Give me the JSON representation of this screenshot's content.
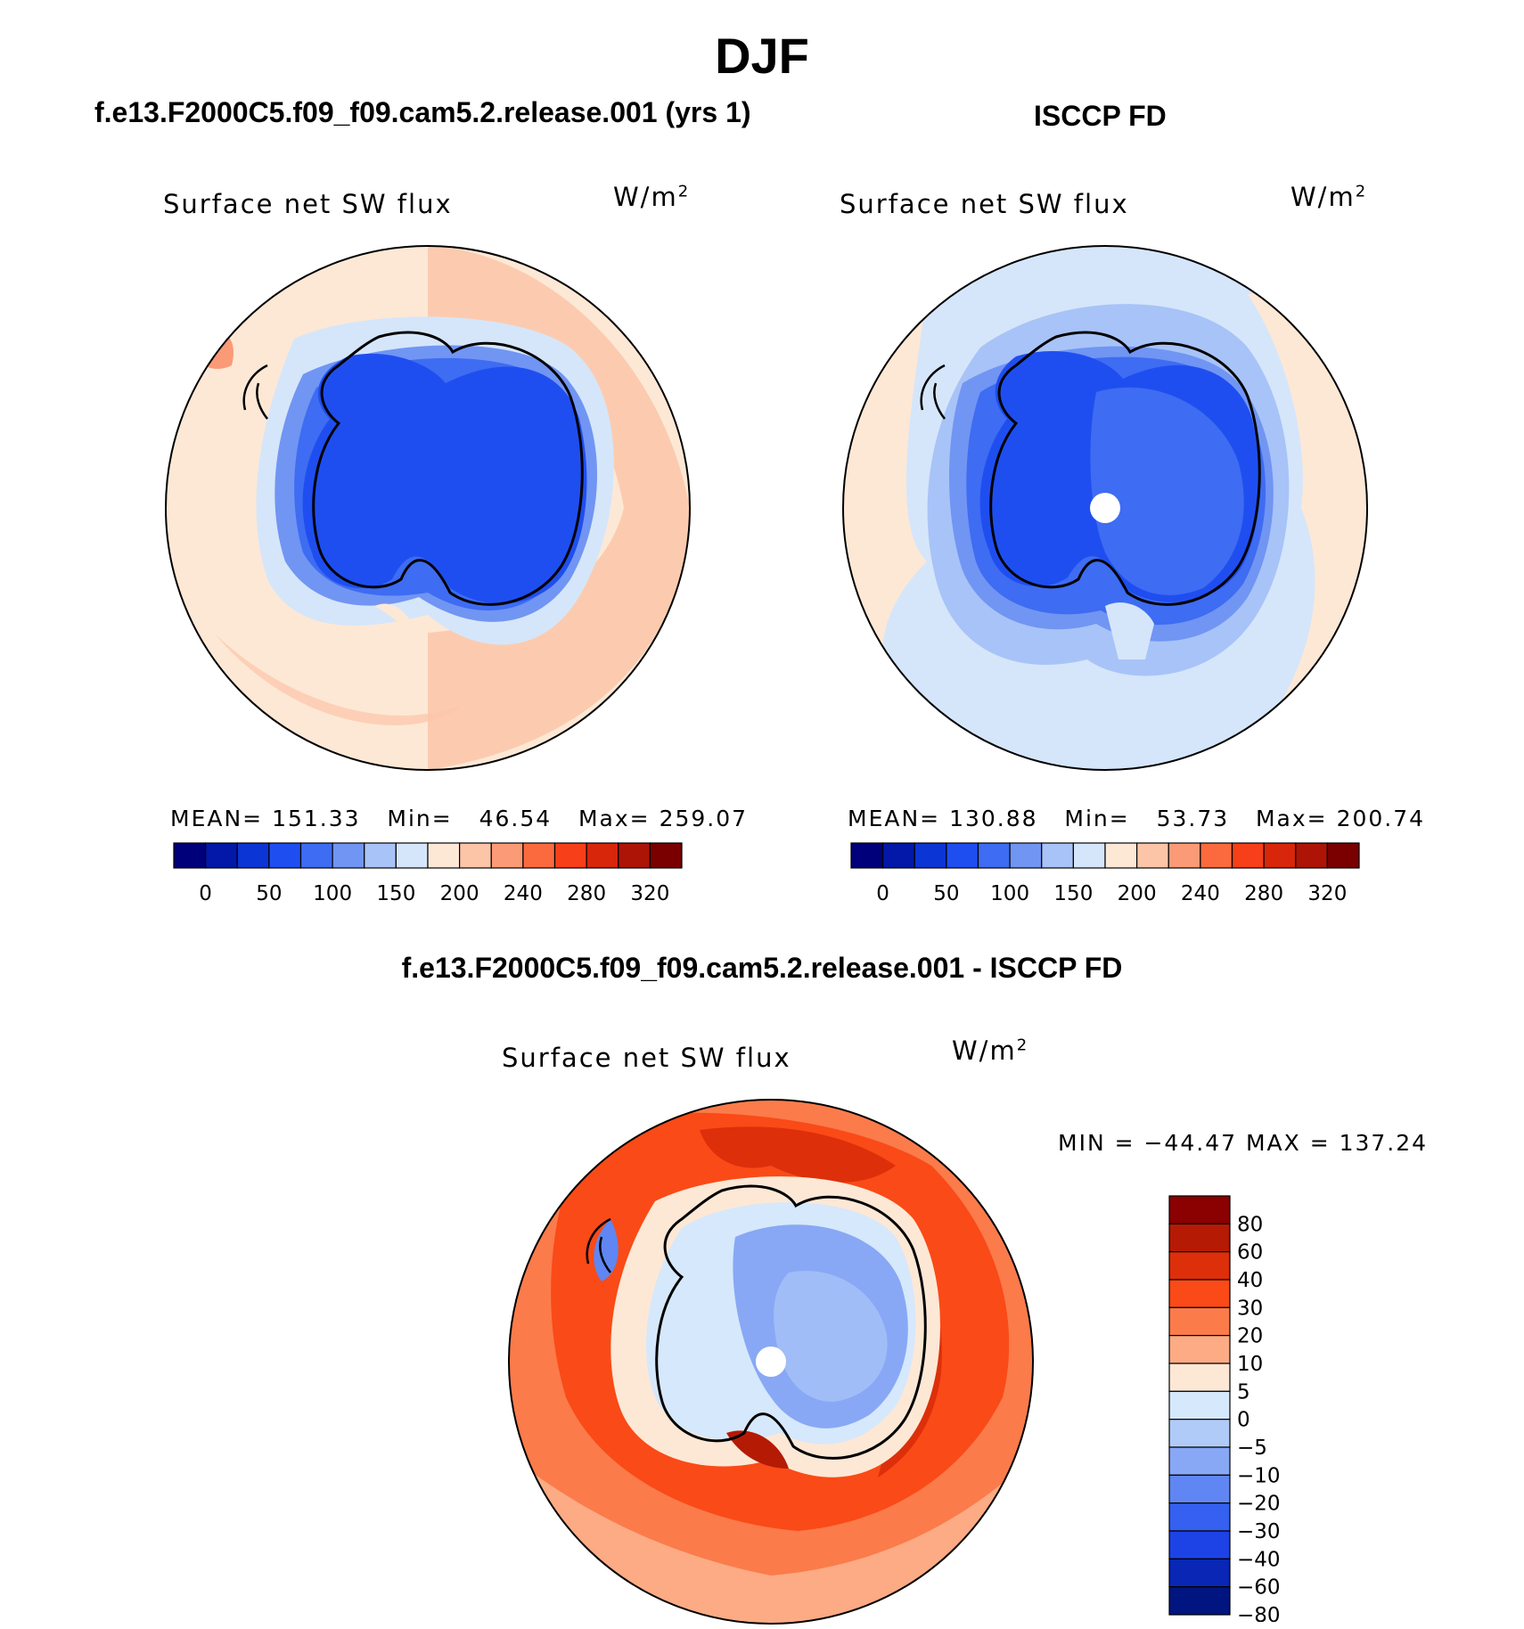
{
  "title": "DJF",
  "panels": [
    {
      "title": "f.e13.F2000C5.f09_f09.cam5.2.release.001 (yrs 1)",
      "variable": "Surface net SW flux",
      "units": "W/m",
      "units_sup": "2",
      "stats": {
        "mean": "151.33",
        "min": "46.54",
        "max": "259.07"
      },
      "has_pole_hole": false
    },
    {
      "title": "ISCCP FD",
      "variable": "Surface net SW flux",
      "units": "W/m",
      "units_sup": "2",
      "stats": {
        "mean": "130.88",
        "min": "53.73",
        "max": "200.74"
      },
      "has_pole_hole": true
    }
  ],
  "stat_labels": {
    "mean": "MEAN=",
    "min": "Min=",
    "max": "Max="
  },
  "abs_colorbar": {
    "colors": [
      "#00007a",
      "#0318a8",
      "#0c35d5",
      "#1f4ef0",
      "#3e6cf2",
      "#7195f3",
      "#a8c3f7",
      "#d5e6fa",
      "#fde8d6",
      "#fcc5a8",
      "#fb9a76",
      "#fa6a3e",
      "#f73f1a",
      "#d8260a",
      "#ad1406",
      "#7a0000"
    ],
    "tick_labels": [
      "0",
      "50",
      "100",
      "150",
      "200",
      "240",
      "280",
      "320"
    ]
  },
  "diff_panel": {
    "title": "f.e13.F2000C5.f09_f09.cam5.2.release.001 - ISCCP FD",
    "variable": "Surface net SW flux",
    "units": "W/m",
    "units_sup": "2",
    "minmax_text": "MIN = −44.47 MAX = 137.24"
  },
  "diff_colorbar": {
    "colors": [
      "#8b0000",
      "#b51a05",
      "#dd2f0a",
      "#fa4a17",
      "#fb7b4b",
      "#fcab84",
      "#fde8d6",
      "#d6e8fb",
      "#b0cbf8",
      "#88a8f5",
      "#5f86f2",
      "#3560f0",
      "#1d42e6",
      "#0a26b5",
      "#00157f"
    ],
    "tick_labels": [
      "80",
      "60",
      "40",
      "30",
      "20",
      "10",
      "5",
      "0",
      "−5",
      "−10",
      "−20",
      "−30",
      "−40",
      "−60",
      "−80"
    ]
  },
  "chart_data": {
    "type": "heatmap",
    "title": "DJF",
    "projection": "south polar stereographic",
    "maps": [
      {
        "name": "f.e13.F2000C5.f09_f09.cam5.2.release.001 (yrs 1)",
        "variable": "Surface net SW flux",
        "units": "W/m2",
        "mean": 151.33,
        "min": 46.54,
        "max": 259.07
      },
      {
        "name": "ISCCP FD",
        "variable": "Surface net SW flux",
        "units": "W/m2",
        "mean": 130.88,
        "min": 53.73,
        "max": 200.74
      },
      {
        "name": "f.e13.F2000C5.f09_f09.cam5.2.release.001 - ISCCP FD",
        "variable": "Surface net SW flux",
        "units": "W/m2",
        "min": -44.47,
        "max": 137.24
      }
    ],
    "abs_levels": [
      0,
      50,
      100,
      150,
      200,
      240,
      280,
      320
    ],
    "diff_levels": [
      80,
      60,
      40,
      30,
      20,
      10,
      5,
      0,
      -5,
      -10,
      -20,
      -30,
      -40,
      -60,
      -80
    ]
  }
}
